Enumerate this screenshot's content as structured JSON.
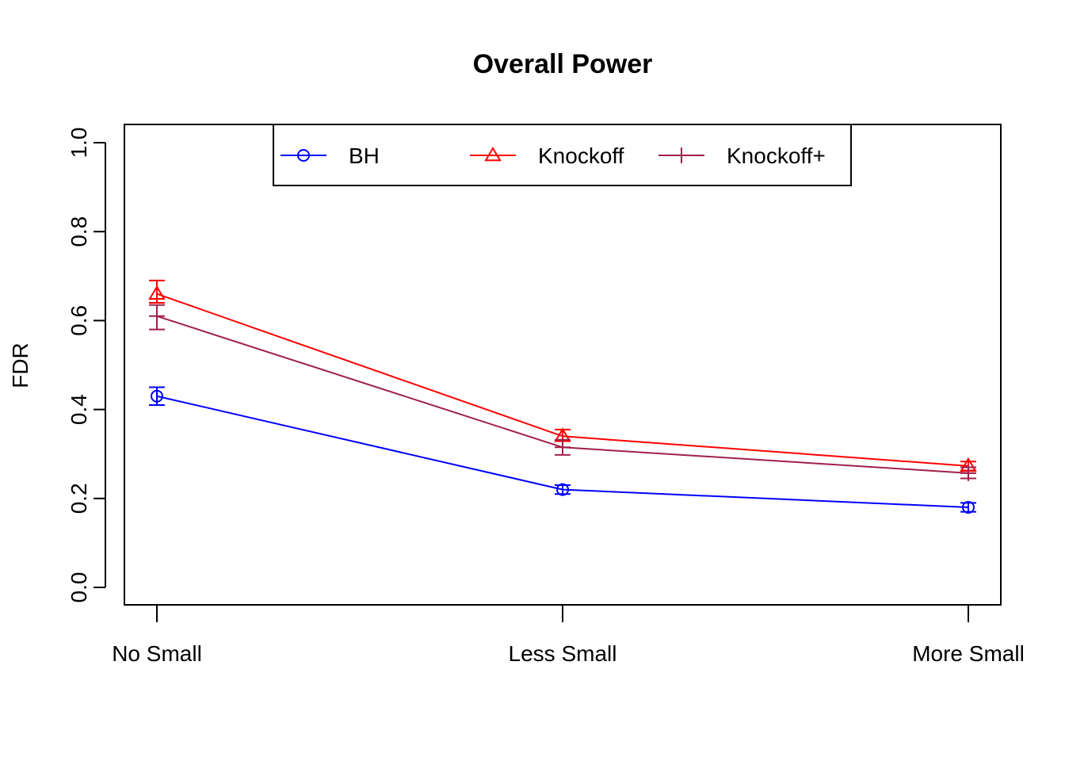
{
  "chart_data": {
    "type": "line",
    "title": "Overall Power",
    "xlabel": "",
    "ylabel": "FDR",
    "categories": [
      "No Small",
      "Less Small",
      "More Small"
    ],
    "ylim": [
      0.0,
      1.0
    ],
    "yticks": [
      "0.0",
      "0.2",
      "0.4",
      "0.6",
      "0.8",
      "1.0"
    ],
    "grid": false,
    "legend": {
      "position": "top-center",
      "columns": 3
    },
    "series": [
      {
        "name": "BH",
        "color": "#0000ff",
        "marker": "circle",
        "values": [
          0.43,
          0.22,
          0.18
        ],
        "lower": [
          0.41,
          0.21,
          0.17
        ],
        "upper": [
          0.45,
          0.23,
          0.19
        ]
      },
      {
        "name": "Knockoff",
        "color": "#ff0000",
        "marker": "triangle",
        "values": [
          0.66,
          0.34,
          0.273
        ],
        "lower": [
          0.64,
          0.33,
          0.263
        ],
        "upper": [
          0.69,
          0.355,
          0.283
        ]
      },
      {
        "name": "Knockoff+",
        "color": "#a0204a",
        "marker": "plus",
        "values": [
          0.61,
          0.315,
          0.257
        ],
        "lower": [
          0.58,
          0.298,
          0.245
        ],
        "upper": [
          0.635,
          0.332,
          0.27
        ]
      }
    ]
  }
}
